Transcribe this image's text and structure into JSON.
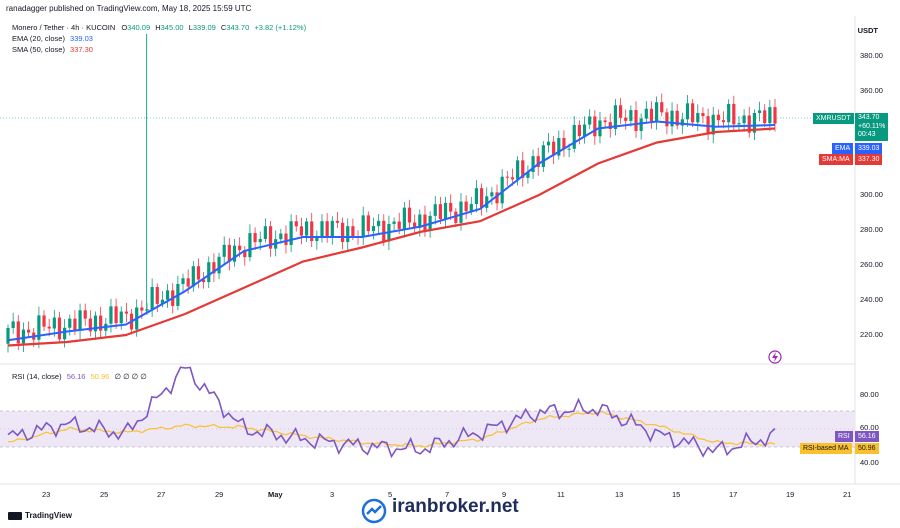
{
  "header": {
    "published_by": "ranadagger published on TradingView.com, May 18, 2025 15:59 UTC"
  },
  "instrument": {
    "title": "Monero / Tether · 4h · KUCOIN",
    "open_label": "O",
    "open": "340.09",
    "high_label": "H",
    "high": "345.00",
    "low_label": "L",
    "low": "339.09",
    "close_label": "C",
    "close": "343.70",
    "change": "+3.82 (+1.12%)"
  },
  "indicators": {
    "ema_label": "EMA (20, close)",
    "ema_value": "339.03",
    "sma_label": "SMA (50, close)",
    "sma_value": "337.30",
    "rsi_label": "RSI (14, close)",
    "rsi_value": "56.16",
    "rsi_ma_value": "50.96",
    "rsi_extra": "∅ ∅ ∅ ∅"
  },
  "price_axis": {
    "currency": "USDT",
    "ticks": [
      "380.00",
      "360.00",
      "300.00",
      "280.00",
      "260.00",
      "240.00",
      "220.00"
    ]
  },
  "rsi_axis": {
    "ticks": [
      "80.00",
      "60.00",
      "40.00"
    ]
  },
  "price_tags": {
    "symbol": "XMRUSDT",
    "last_price": "343.70",
    "change_pct": "+60.11%",
    "countdown": "00:43",
    "ema_tag": "EMA",
    "ema_value": "339.03",
    "sma_tag": "SMA:MA",
    "sma_value": "337.30",
    "rsi_tag": "RSI",
    "rsi_value": "56.16",
    "rsi_ma_tag": "RSI-based MA",
    "rsi_ma_value": "50.96"
  },
  "time_axis": {
    "labels": [
      "23",
      "25",
      "27",
      "29",
      "May",
      "3",
      "5",
      "7",
      "9",
      "11",
      "13",
      "15",
      "17",
      "19",
      "21"
    ]
  },
  "footer": {
    "brand": "TradingView"
  },
  "watermark": {
    "text": "iranbroker.net"
  },
  "colors": {
    "up": "#089981",
    "down": "#f23645",
    "ema": "#2962ff",
    "sma": "#e53935",
    "rsi": "#7e57c2",
    "rsi_ma": "#fbc02d",
    "rsi_band": "#ede7f6"
  },
  "chart_data": [
    {
      "type": "line",
      "title": "Monero / Tether · 4h · KUCOIN",
      "x": [
        "23",
        "25",
        "27",
        "29",
        "May",
        "3",
        "5",
        "7",
        "9",
        "11",
        "13",
        "15",
        "17",
        "19"
      ],
      "series": [
        {
          "name": "EMA (20, close)",
          "values": [
            217,
            222,
            226,
            245,
            268,
            276,
            276,
            282,
            292,
            318,
            338,
            342,
            339,
            340
          ]
        },
        {
          "name": "SMA (50, close)",
          "values": [
            214,
            216,
            220,
            232,
            247,
            262,
            270,
            279,
            285,
            300,
            318,
            330,
            336,
            338
          ]
        }
      ],
      "ylim": [
        210,
        395
      ],
      "yticks": [
        220,
        240,
        260,
        280,
        300,
        360,
        380
      ]
    },
    {
      "type": "line",
      "title": "RSI (14, close)",
      "x": [
        "23",
        "25",
        "27",
        "29",
        "May",
        "3",
        "5",
        "7",
        "9",
        "11",
        "13",
        "15",
        "17",
        "19"
      ],
      "series": [
        {
          "name": "RSI (14, close)",
          "values": [
            55,
            63,
            57,
            96,
            60,
            54,
            50,
            48,
            58,
            70,
            72,
            57,
            47,
            56
          ]
        },
        {
          "name": "RSI-based MA",
          "values": [
            52,
            60,
            58,
            62,
            61,
            56,
            52,
            50,
            54,
            66,
            70,
            62,
            52,
            51
          ]
        }
      ],
      "ylim": [
        25,
        100
      ],
      "yticks": [
        40,
        60,
        80
      ]
    }
  ]
}
